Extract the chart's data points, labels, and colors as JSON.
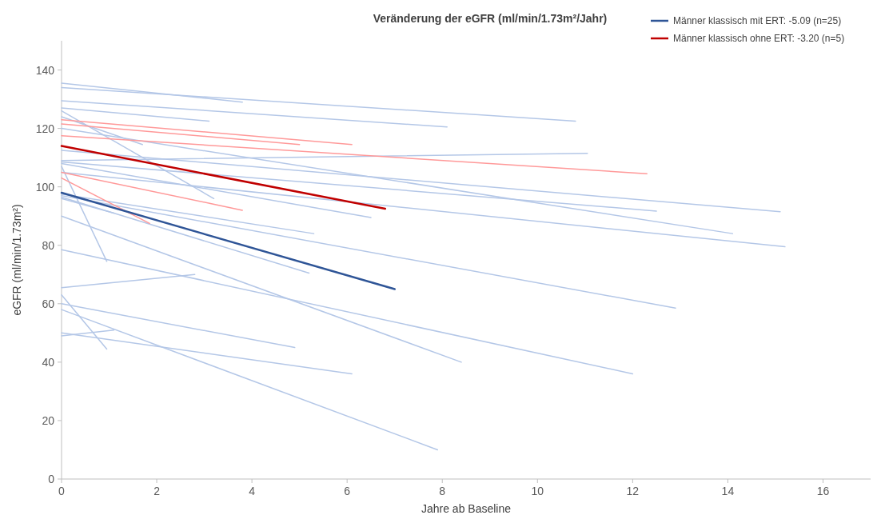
{
  "chart_data": {
    "type": "line",
    "title": "Veränderung der eGFR (ml/min/1.73m²/Jahr)",
    "xlabel": "Jahre ab Baseline",
    "ylabel": "eGFR (ml/min/1.73m²)",
    "xlim": [
      0,
      17
    ],
    "xticks": [
      0,
      2,
      4,
      6,
      8,
      10,
      12,
      14,
      16
    ],
    "ylim": [
      0,
      150
    ],
    "yticks": [
      0,
      20,
      40,
      60,
      80,
      100,
      120,
      140
    ],
    "grid": false,
    "legend": "top right",
    "marker": "none",
    "line_style": "solid",
    "series": [
      {
        "color": "#b4c7e7",
        "x": [
          0,
          3.8
        ],
        "values": [
          135.5,
          129
        ]
      },
      {
        "color": "#b4c7e7",
        "x": [
          0,
          10.8
        ],
        "values": [
          134,
          122.5
        ]
      },
      {
        "color": "#b4c7e7",
        "x": [
          0,
          8.1
        ],
        "values": [
          129.5,
          120.5
        ]
      },
      {
        "color": "#b4c7e7",
        "x": [
          0,
          3.1
        ],
        "values": [
          127,
          122.5
        ]
      },
      {
        "color": "#b4c7e7",
        "x": [
          0,
          3.2
        ],
        "values": [
          126,
          96
        ]
      },
      {
        "color": "#b4c7e7",
        "x": [
          0,
          1.7
        ],
        "values": [
          124,
          114.5
        ]
      },
      {
        "color": "#b4c7e7",
        "x": [
          0,
          14.1
        ],
        "values": [
          120,
          84
        ]
      },
      {
        "color": "#b4c7e7",
        "x": [
          0,
          15.1
        ],
        "values": [
          112.5,
          91.5
        ]
      },
      {
        "color": "#b4c7e7",
        "x": [
          0,
          11.05
        ],
        "values": [
          109,
          111.5
        ]
      },
      {
        "color": "#b4c7e7",
        "x": [
          0,
          12.5
        ],
        "values": [
          108.5,
          91.7
        ]
      },
      {
        "color": "#b4c7e7",
        "x": [
          0,
          6.5
        ],
        "values": [
          108,
          89.5
        ]
      },
      {
        "color": "#b4c7e7",
        "x": [
          0,
          15.2
        ],
        "values": [
          105,
          79.5
        ]
      },
      {
        "color": "#b4c7e7",
        "x": [
          0,
          0.95
        ],
        "values": [
          107,
          74.5
        ]
      },
      {
        "color": "#b4c7e7",
        "x": [
          0,
          5.3
        ],
        "values": [
          97.5,
          84
        ]
      },
      {
        "color": "#b4c7e7",
        "x": [
          0,
          12.9
        ],
        "values": [
          97,
          58.5
        ]
      },
      {
        "color": "#b4c7e7",
        "x": [
          0,
          1.1
        ],
        "values": [
          96,
          91
        ]
      },
      {
        "color": "#b4c7e7",
        "x": [
          0,
          5.2
        ],
        "values": [
          96.5,
          70.5
        ]
      },
      {
        "color": "#b4c7e7",
        "x": [
          0,
          8.4
        ],
        "values": [
          90,
          40
        ]
      },
      {
        "color": "#b4c7e7",
        "x": [
          0,
          12
        ],
        "values": [
          78.5,
          36
        ]
      },
      {
        "color": "#b4c7e7",
        "x": [
          0,
          2.8
        ],
        "values": [
          65.5,
          70
        ]
      },
      {
        "color": "#b4c7e7",
        "x": [
          0,
          0.95
        ],
        "values": [
          63,
          44.5
        ]
      },
      {
        "color": "#b4c7e7",
        "x": [
          0,
          4.9
        ],
        "values": [
          60,
          45
        ]
      },
      {
        "color": "#b4c7e7",
        "x": [
          0,
          7.9
        ],
        "values": [
          58,
          10
        ]
      },
      {
        "color": "#b4c7e7",
        "x": [
          0,
          6.1
        ],
        "values": [
          50,
          36
        ]
      },
      {
        "color": "#b4c7e7",
        "x": [
          0,
          1.1
        ],
        "values": [
          49,
          51
        ]
      },
      {
        "color": "#ff9999",
        "x": [
          0,
          6.1
        ],
        "values": [
          123,
          114.5
        ]
      },
      {
        "color": "#ff9999",
        "x": [
          0,
          5
        ],
        "values": [
          121.5,
          114.5
        ]
      },
      {
        "color": "#ff9999",
        "x": [
          0,
          12.3
        ],
        "values": [
          117.5,
          104.5
        ]
      },
      {
        "color": "#ff9999",
        "x": [
          0,
          3.8
        ],
        "values": [
          105,
          92
        ]
      },
      {
        "color": "#ff9999",
        "x": [
          0,
          1.85
        ],
        "values": [
          103,
          87.5
        ]
      },
      {
        "name": "Männer klassisch mit ERT: -5.09 (n=25)",
        "color": "#2f5597",
        "x": [
          0,
          7
        ],
        "values": [
          98,
          65
        ]
      },
      {
        "name": "Männer klassisch ohne ERT: -3.20 (n=5)",
        "color": "#c00000",
        "x": [
          0,
          6.8
        ],
        "values": [
          114,
          92.5
        ]
      }
    ]
  }
}
